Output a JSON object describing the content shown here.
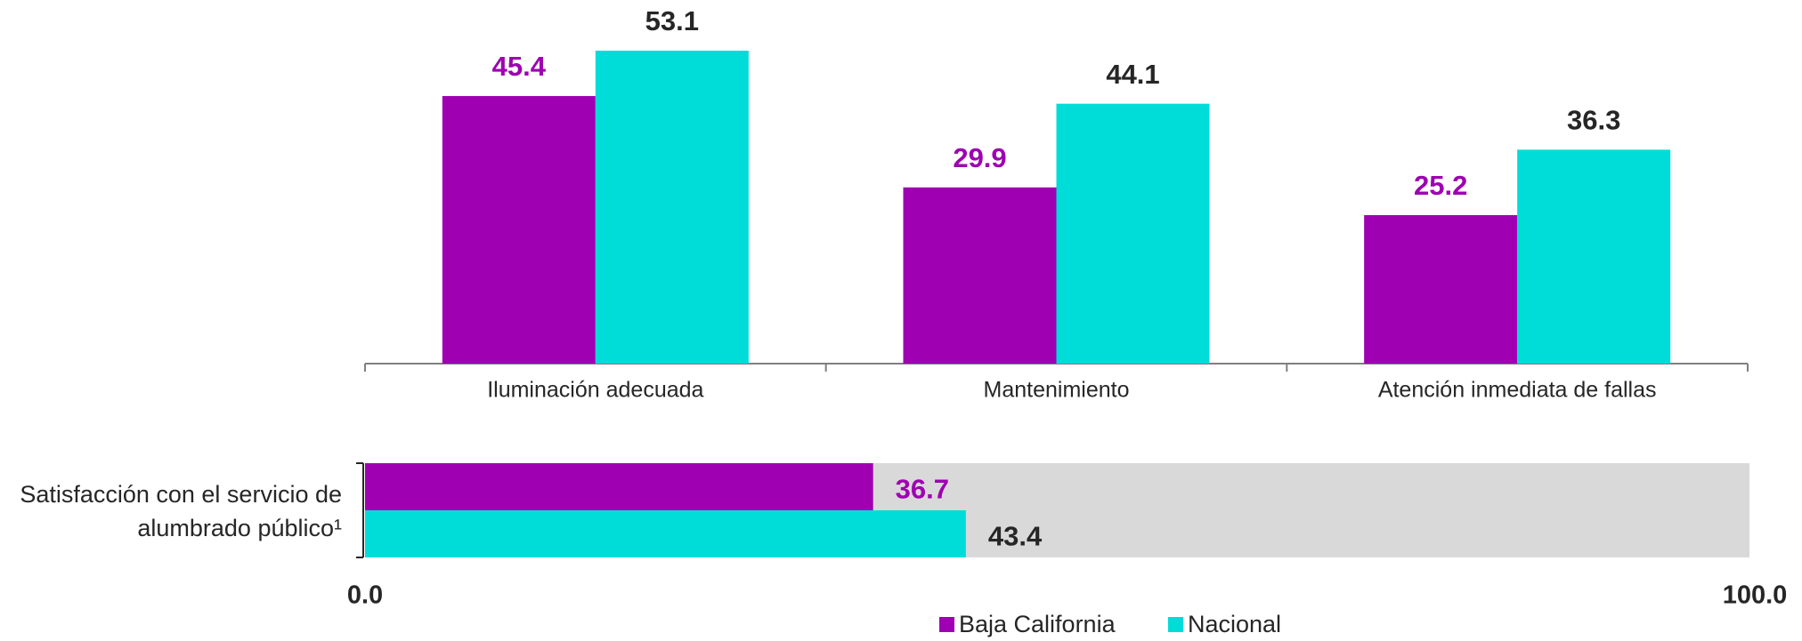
{
  "chart_data": [
    {
      "type": "bar",
      "categories": [
        "Iluminación adecuada",
        "Mantenimiento",
        "Atención inmediata de fallas"
      ],
      "series": [
        {
          "name": "Baja California",
          "color": "#9e00b2",
          "label_color": "#9e00b2",
          "values": [
            45.4,
            29.9,
            25.2
          ]
        },
        {
          "name": "Nacional",
          "color": "#00dcd8",
          "label_color": "#262626",
          "values": [
            53.1,
            44.1,
            36.3
          ]
        }
      ],
      "legend": "bottom"
    },
    {
      "type": "hbar",
      "categories": [
        "Satisfacción con el servicio de alumbrado público¹"
      ],
      "series": [
        {
          "name": "Baja California",
          "color": "#9e00b2",
          "label_color": "#9e00b2",
          "values": [
            36.7
          ]
        },
        {
          "name": "Nacional",
          "color": "#00dcd8",
          "label_color": "#262626",
          "values": [
            43.4
          ]
        }
      ],
      "xlim": [
        0,
        100
      ],
      "xticks": [
        {
          "value": 0,
          "label": "0.0"
        },
        {
          "value": 100,
          "label": "100.0"
        }
      ]
    }
  ]
}
